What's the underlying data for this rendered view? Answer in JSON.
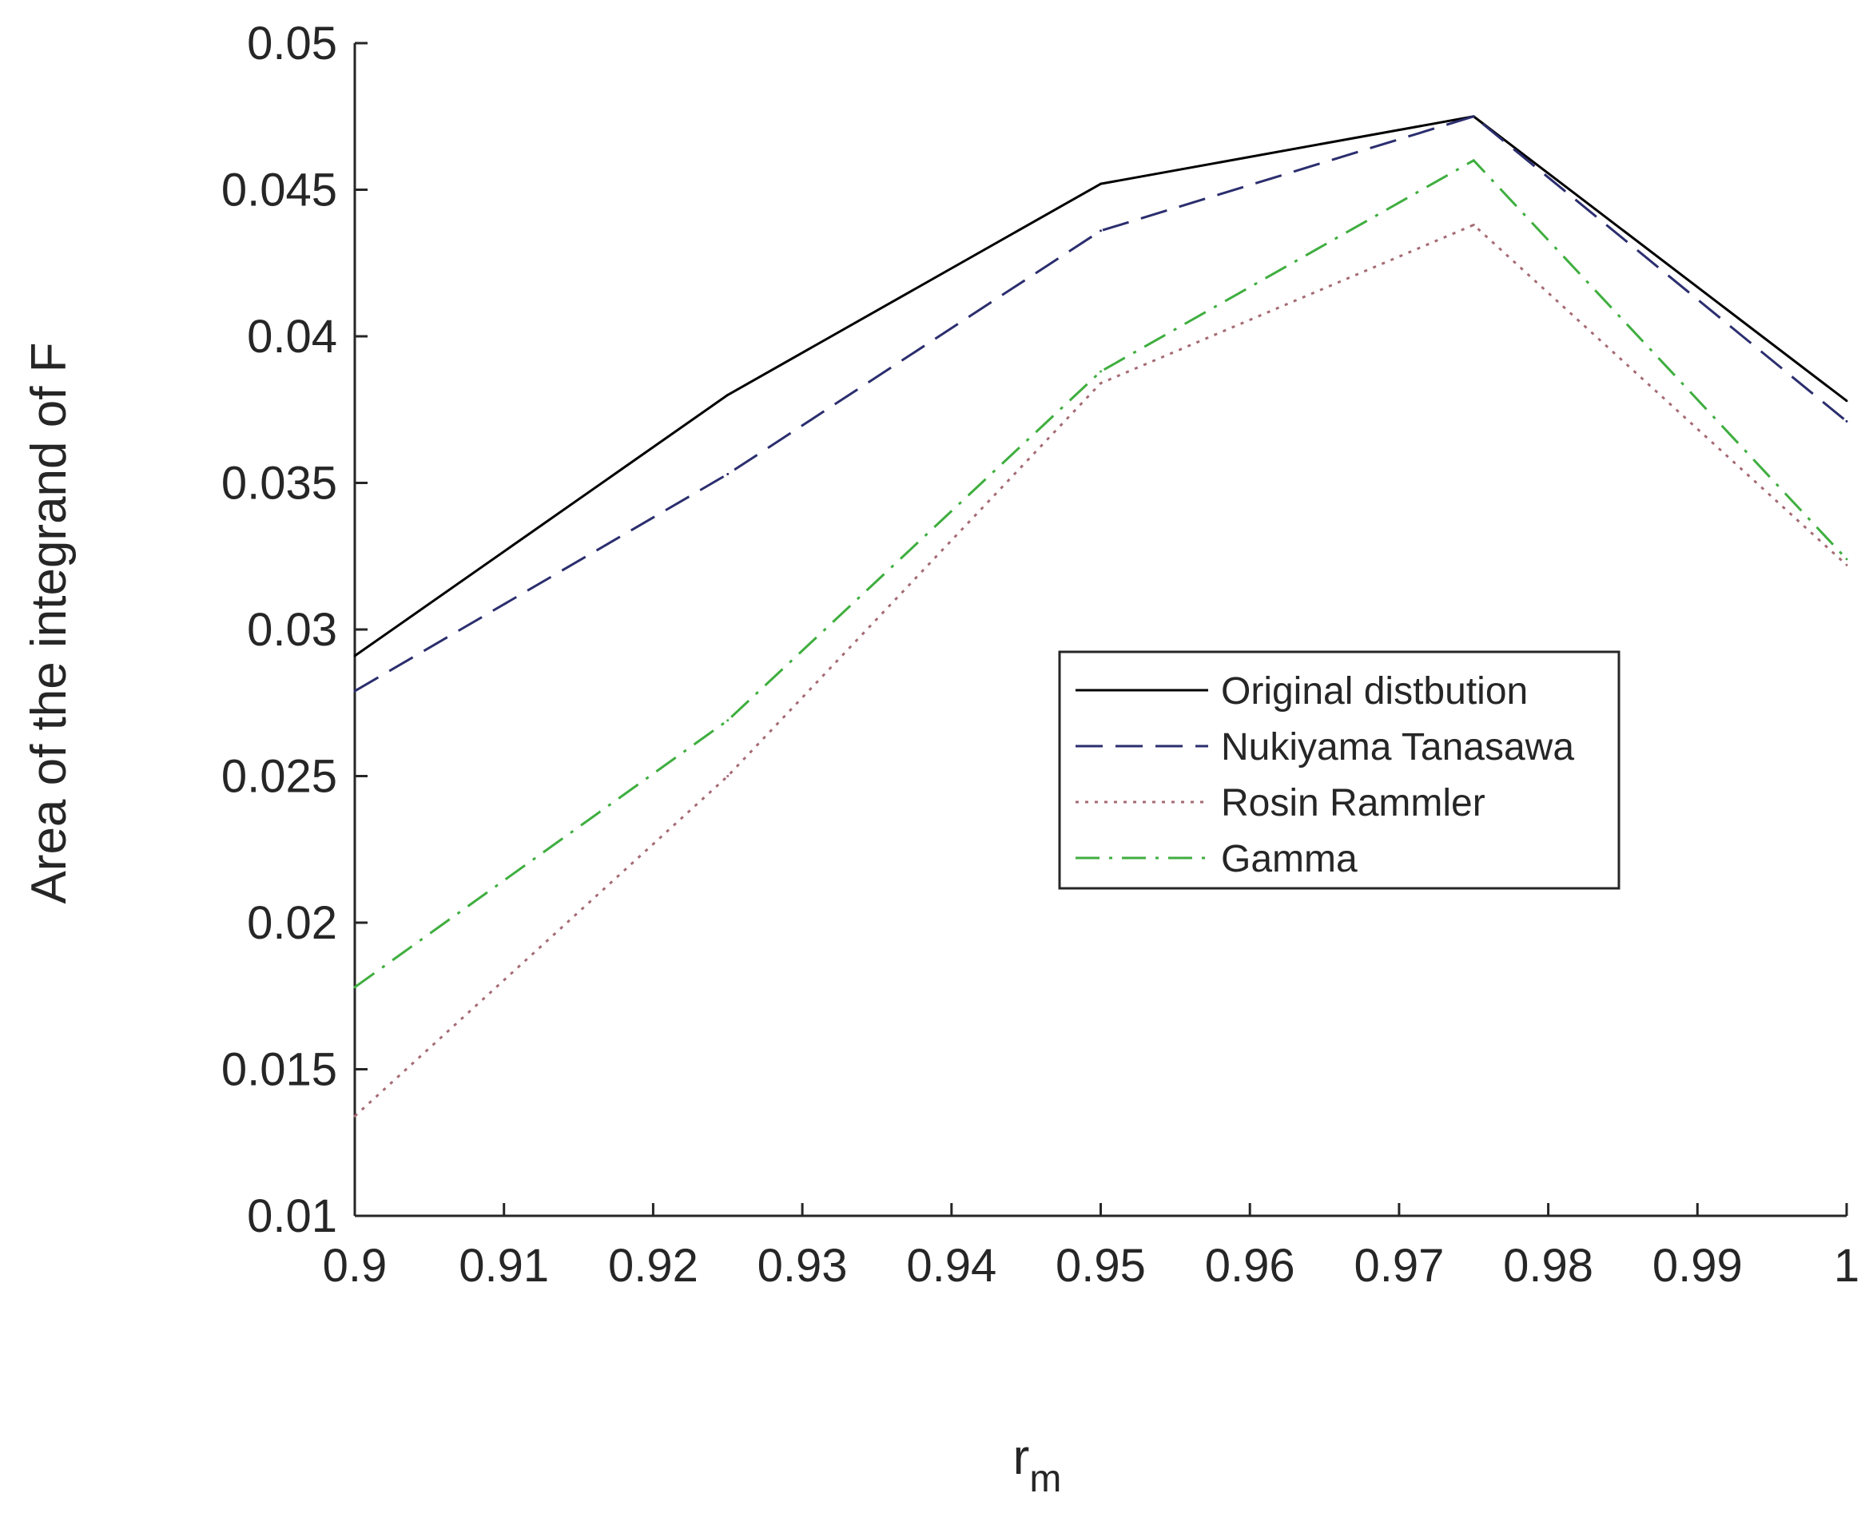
{
  "chart_data": {
    "type": "line",
    "title": "",
    "xlabel": "r",
    "xlabel_subscript": "m",
    "ylabel": "Area of the integrand of F",
    "xlim": [
      0.9,
      1.0
    ],
    "ylim": [
      0.01,
      0.05
    ],
    "x_ticks": [
      0.9,
      0.91,
      0.92,
      0.93,
      0.94,
      0.95,
      0.96,
      0.97,
      0.98,
      0.99,
      1.0
    ],
    "x_tick_labels": [
      "0.9",
      "0.91",
      "0.92",
      "0.93",
      "0.94",
      "0.95",
      "0.96",
      "0.97",
      "0.98",
      "0.99",
      "1"
    ],
    "y_ticks": [
      0.01,
      0.015,
      0.02,
      0.025,
      0.03,
      0.035,
      0.04,
      0.045,
      0.05
    ],
    "y_tick_labels": [
      "0.01",
      "0.015",
      "0.02",
      "0.025",
      "0.03",
      "0.035",
      "0.04",
      "0.045",
      "0.05"
    ],
    "grid": false,
    "legend_position": "center-right",
    "x": [
      0.9,
      0.925,
      0.95,
      0.975,
      1.0
    ],
    "series": [
      {
        "name": "Original distbution",
        "values": [
          0.0291,
          0.038,
          0.0452,
          0.0475,
          0.0378
        ],
        "color": "#000000",
        "dash": "solid"
      },
      {
        "name": "Nukiyama Tanasawa",
        "values": [
          0.0279,
          0.0353,
          0.0436,
          0.0475,
          0.0371
        ],
        "color": "#2b2e6e",
        "dash": "dashed"
      },
      {
        "name": "Rosin Rammler",
        "values": [
          0.0134,
          0.025,
          0.0384,
          0.0438,
          0.0322
        ],
        "color": "#a56b74",
        "dash": "dotted"
      },
      {
        "name": "Gamma",
        "values": [
          0.0178,
          0.0269,
          0.0388,
          0.046,
          0.0324
        ],
        "color": "#3fae3f",
        "dash": "dashdot"
      }
    ]
  }
}
